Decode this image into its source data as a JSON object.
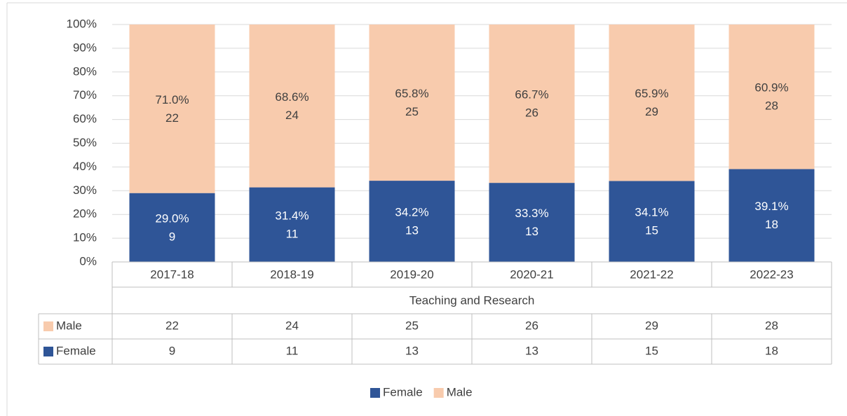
{
  "chart_data": {
    "type": "stacked_bar_100",
    "categories": [
      "2017-18",
      "2018-19",
      "2019-20",
      "2020-21",
      "2021-22",
      "2022-23"
    ],
    "group_label": "Teaching and Research",
    "series": [
      {
        "name": "Female",
        "color": "#2f5597",
        "values": [
          29.0,
          31.4,
          34.2,
          33.3,
          34.1,
          39.1
        ],
        "value_labels": [
          "29.0%",
          "31.4%",
          "34.2%",
          "33.3%",
          "34.1%",
          "39.1%"
        ],
        "counts": [
          9,
          11,
          13,
          13,
          15,
          18
        ]
      },
      {
        "name": "Male",
        "color": "#f8cbad",
        "values": [
          71.0,
          68.6,
          65.8,
          66.7,
          65.9,
          60.9
        ],
        "value_labels": [
          "71.0%",
          "68.6%",
          "65.8%",
          "66.7%",
          "65.9%",
          "60.9%"
        ],
        "counts": [
          22,
          24,
          25,
          26,
          29,
          28
        ]
      }
    ],
    "ylim": [
      0,
      100
    ],
    "yticks": [
      {
        "value": 0,
        "label": "0%"
      },
      {
        "value": 10,
        "label": "10%"
      },
      {
        "value": 20,
        "label": "20%"
      },
      {
        "value": 30,
        "label": "30%"
      },
      {
        "value": 40,
        "label": "40%"
      },
      {
        "value": 50,
        "label": "50%"
      },
      {
        "value": 60,
        "label": "60%"
      },
      {
        "value": 70,
        "label": "70%"
      },
      {
        "value": 80,
        "label": "80%"
      },
      {
        "value": 90,
        "label": "90%"
      },
      {
        "value": 100,
        "label": "100%"
      }
    ],
    "grid": true,
    "legend": "bottom"
  }
}
